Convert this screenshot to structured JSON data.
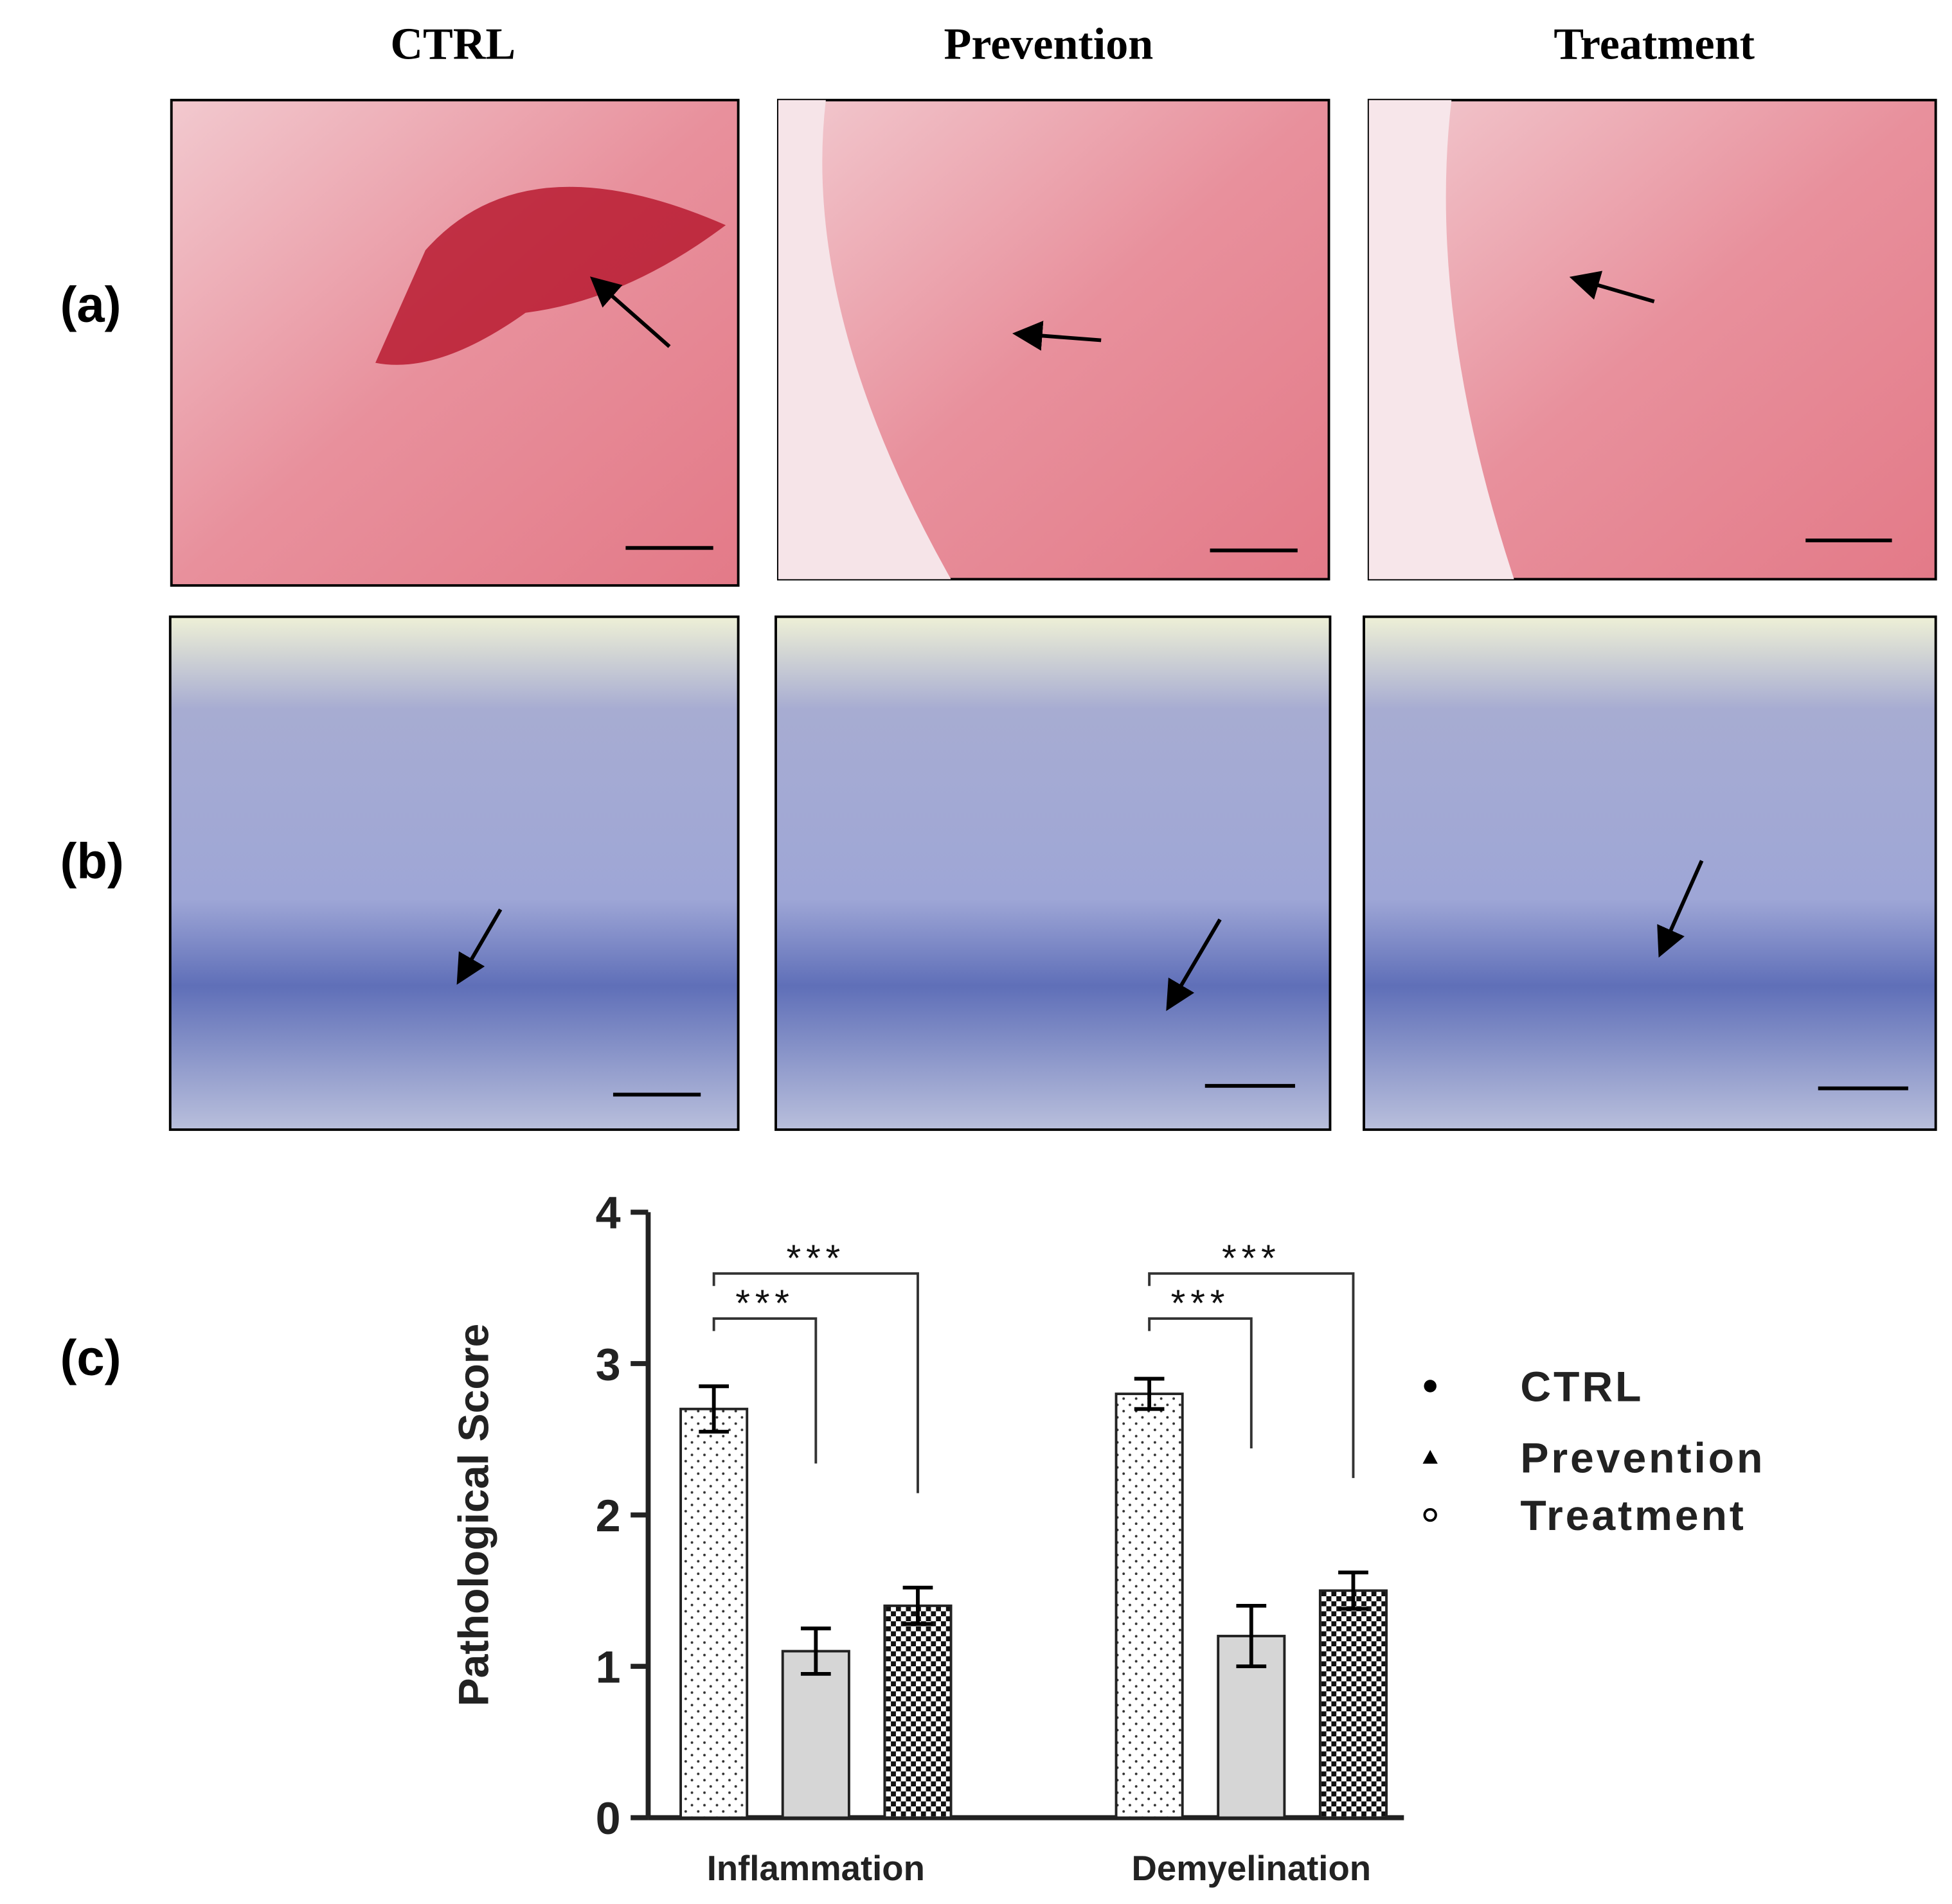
{
  "column_titles": [
    "CTRL",
    "Prevention",
    "Treatment"
  ],
  "panel_labels": [
    "(a)",
    "(b)",
    "(c)"
  ],
  "chart_data": {
    "type": "bar",
    "ylabel": "Pathological Score",
    "categories": [
      "Inflammation",
      "Demyelination"
    ],
    "series": [
      {
        "name": "CTRL",
        "values": [
          2.7,
          2.8
        ],
        "errors": [
          0.15,
          0.1
        ]
      },
      {
        "name": "Prevention",
        "values": [
          1.1,
          1.2
        ],
        "errors": [
          0.15,
          0.2
        ]
      },
      {
        "name": "Treatment",
        "values": [
          1.4,
          1.5
        ],
        "errors": [
          0.12,
          0.12
        ]
      }
    ],
    "annotations": [
      "***",
      "***",
      "***",
      "***"
    ],
    "ylim": [
      0,
      4
    ],
    "yticks": [
      0,
      1,
      2,
      3,
      4
    ]
  }
}
